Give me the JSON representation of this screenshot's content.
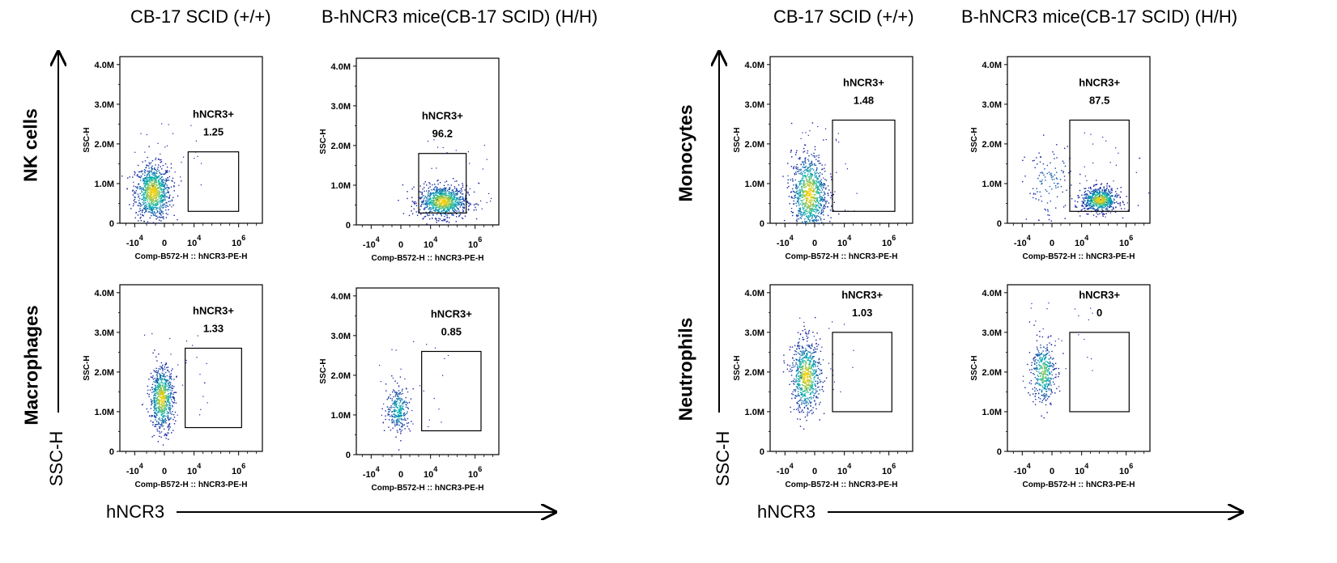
{
  "column_headers": {
    "left_group": [
      "CB-17 SCID (+/+)",
      "B-hNCR3 mice(CB-17 SCID) (H/H)"
    ],
    "right_group": [
      "CB-17 SCID (+/+)",
      "B-hNCR3 mice(CB-17 SCID) (H/H)"
    ]
  },
  "row_labels": {
    "left_group": [
      "NK cells",
      "Macrophages"
    ],
    "right_group": [
      "Monocytes",
      "Neutrophils"
    ]
  },
  "figure_axes": {
    "y_label": "SSC-H",
    "x_label": "hNCR3"
  },
  "colors": {
    "density_low": "#1a1aa0",
    "density_mid": "#00b4b4",
    "density_high": "#ffd000",
    "gate": "#000000"
  },
  "chart_data": [
    {
      "type": "scatter",
      "cell_type": "NK cells",
      "strain": "CB-17 SCID (+/+)",
      "gate_label": "hNCR3+",
      "gate_value": "1.25",
      "xlabel": "Comp-B572-H :: hNCR3-PE-H",
      "ylabel": "SSC-H",
      "x_ticks": [
        "-10^4",
        "0",
        "10^4",
        "10^6"
      ],
      "y_ticks": [
        "4.0M",
        "3.0M",
        "2.0M",
        "1.0M",
        "0"
      ],
      "y_range": [
        0,
        4.2
      ],
      "gate": {
        "x": [
          0.8,
          2.5
        ],
        "y": [
          0.3,
          1.8
        ]
      },
      "clusters": [
        {
          "x": -0.4,
          "y": 0.8,
          "sx": 0.3,
          "sy": 0.35,
          "n": 900
        }
      ]
    },
    {
      "type": "scatter",
      "cell_type": "NK cells",
      "strain": "B-hNCR3 mice(CB-17 SCID) (H/H)",
      "gate_label": "hNCR3+",
      "gate_value": "96.2",
      "xlabel": "Comp-B572-H :: hNCR3-PE-H",
      "ylabel": "SSC-H",
      "x_ticks": [
        "-10^4",
        "0",
        "10^4",
        "10^6"
      ],
      "y_ticks": [
        "4.0M",
        "3.0M",
        "2.0M",
        "1.0M",
        "0"
      ],
      "y_range": [
        0,
        4.2
      ],
      "gate": {
        "x": [
          0.6,
          2.2
        ],
        "y": [
          0.3,
          1.8
        ]
      },
      "clusters": [
        {
          "x": 1.4,
          "y": 0.6,
          "sx": 0.4,
          "sy": 0.2,
          "n": 900
        }
      ]
    },
    {
      "type": "scatter",
      "cell_type": "Monocytes",
      "strain": "CB-17 SCID (+/+)",
      "gate_label": "hNCR3+",
      "gate_value": "1.48",
      "xlabel": "Comp-B572-H :: hNCR3-PE-H",
      "ylabel": "SSC-H",
      "x_ticks": [
        "-10^4",
        "0",
        "10^4",
        "10^6"
      ],
      "y_ticks": [
        "4.0M",
        "3.0M",
        "2.0M",
        "1.0M",
        "0"
      ],
      "y_range": [
        0,
        4.2
      ],
      "gate": {
        "x": [
          0.6,
          2.7
        ],
        "y": [
          0.3,
          2.6
        ]
      },
      "clusters": [
        {
          "x": -0.2,
          "y": 0.75,
          "sx": 0.3,
          "sy": 0.5,
          "n": 900
        }
      ]
    },
    {
      "type": "scatter",
      "cell_type": "Monocytes",
      "strain": "B-hNCR3 mice(CB-17 SCID) (H/H)",
      "gate_label": "hNCR3+",
      "gate_value": "87.5",
      "xlabel": "Comp-B572-H :: hNCR3-PE-H",
      "ylabel": "SSC-H",
      "x_ticks": [
        "-10^4",
        "0",
        "10^4",
        "10^6"
      ],
      "y_ticks": [
        "4.0M",
        "3.0M",
        "2.0M",
        "1.0M",
        "0"
      ],
      "y_range": [
        0,
        4.2
      ],
      "gate": {
        "x": [
          0.6,
          2.6
        ],
        "y": [
          0.3,
          2.6
        ]
      },
      "clusters": [
        {
          "x": 1.6,
          "y": 0.6,
          "sx": 0.3,
          "sy": 0.15,
          "n": 700
        },
        {
          "x": -0.1,
          "y": 1.0,
          "sx": 0.4,
          "sy": 0.5,
          "n": 120
        }
      ]
    },
    {
      "type": "scatter",
      "cell_type": "Macrophages",
      "strain": "CB-17 SCID (+/+)",
      "gate_label": "hNCR3+",
      "gate_value": "1.33",
      "xlabel": "Comp-B572-H :: hNCR3-PE-H",
      "ylabel": "SSC-H",
      "x_ticks": [
        "-10^4",
        "0",
        "10^4",
        "10^6"
      ],
      "y_ticks": [
        "4.0M",
        "3.0M",
        "2.0M",
        "1.0M",
        "0"
      ],
      "y_range": [
        0,
        4.2
      ],
      "gate": {
        "x": [
          0.7,
          2.6
        ],
        "y": [
          0.6,
          2.6
        ]
      },
      "clusters": [
        {
          "x": -0.1,
          "y": 1.35,
          "sx": 0.2,
          "sy": 0.4,
          "n": 700
        }
      ]
    },
    {
      "type": "scatter",
      "cell_type": "Macrophages",
      "strain": "B-hNCR3 mice(CB-17 SCID) (H/H)",
      "gate_label": "hNCR3+",
      "gate_value": "0.85",
      "xlabel": "Comp-B572-H :: hNCR3-PE-H",
      "ylabel": "SSC-H",
      "x_ticks": [
        "-10^4",
        "0",
        "10^4",
        "10^6"
      ],
      "y_ticks": [
        "4.0M",
        "3.0M",
        "2.0M",
        "1.0M",
        "0"
      ],
      "y_range": [
        0,
        4.2
      ],
      "gate": {
        "x": [
          0.7,
          2.7
        ],
        "y": [
          0.6,
          2.6
        ]
      },
      "clusters": [
        {
          "x": -0.1,
          "y": 1.15,
          "sx": 0.2,
          "sy": 0.3,
          "n": 260
        }
      ]
    },
    {
      "type": "scatter",
      "cell_type": "Neutrophils",
      "strain": "CB-17 SCID (+/+)",
      "gate_label": "hNCR3+",
      "gate_value": "1.03",
      "xlabel": "Comp-B572-H :: hNCR3-PE-H",
      "ylabel": "SSC-H",
      "x_ticks": [
        "-10^4",
        "0",
        "10^4",
        "10^6"
      ],
      "y_ticks": [
        "4.0M",
        "3.0M",
        "2.0M",
        "1.0M",
        "0"
      ],
      "y_range": [
        0,
        4.2
      ],
      "gate": {
        "x": [
          0.6,
          2.6
        ],
        "y": [
          1.0,
          3.0
        ]
      },
      "clusters": [
        {
          "x": -0.3,
          "y": 1.9,
          "sx": 0.25,
          "sy": 0.45,
          "n": 700
        }
      ]
    },
    {
      "type": "scatter",
      "cell_type": "Neutrophils",
      "strain": "B-hNCR3 mice(CB-17 SCID) (H/H)",
      "gate_label": "hNCR3+",
      "gate_value": "0",
      "xlabel": "Comp-B572-H :: hNCR3-PE-H",
      "ylabel": "SSC-H",
      "x_ticks": [
        "-10^4",
        "0",
        "10^4",
        "10^6"
      ],
      "y_ticks": [
        "4.0M",
        "3.0M",
        "2.0M",
        "1.0M",
        "0"
      ],
      "y_range": [
        0,
        4.2
      ],
      "gate": {
        "x": [
          0.6,
          2.6
        ],
        "y": [
          1.0,
          3.0
        ]
      },
      "clusters": [
        {
          "x": -0.3,
          "y": 2.0,
          "sx": 0.2,
          "sy": 0.4,
          "n": 380
        }
      ]
    }
  ]
}
